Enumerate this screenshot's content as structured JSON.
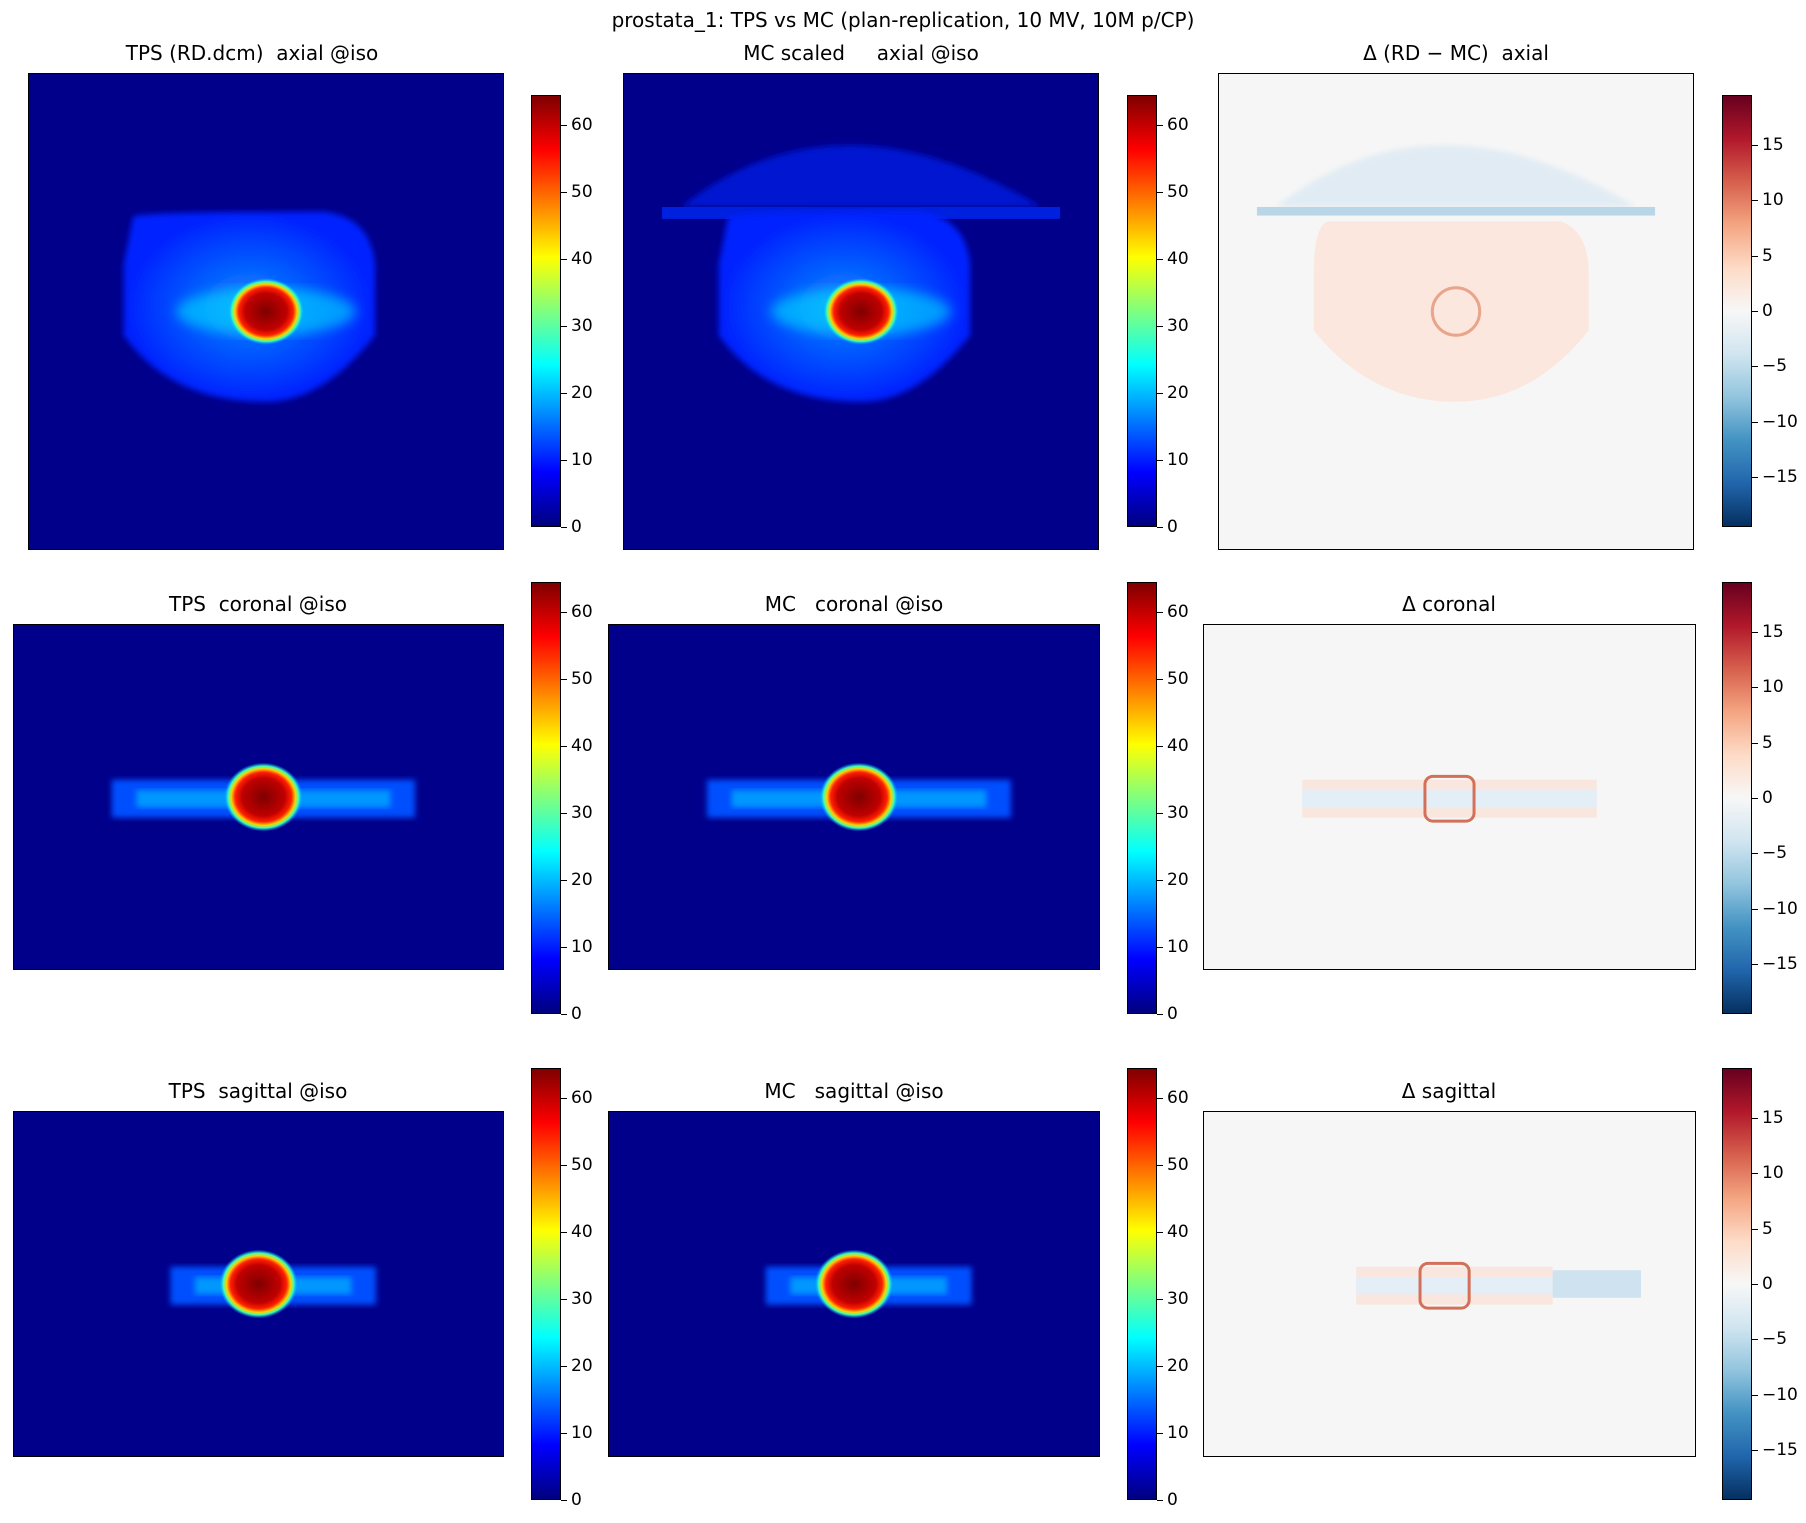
{
  "figure_title": "prostata_1: TPS vs MC (plan-replication, 10 MV, 10M p/CP)",
  "colormaps": {
    "jet": [
      "#00007f",
      "#0000ff",
      "#007fff",
      "#00ffff",
      "#7fff7f",
      "#ffff00",
      "#ff7f00",
      "#ff0000",
      "#7f0000"
    ],
    "rdbu": [
      "#053061",
      "#2166ac",
      "#4393c3",
      "#92c5de",
      "#d1e5f0",
      "#f7f7f7",
      "#fddbc7",
      "#f4a582",
      "#d6604d",
      "#b2182b",
      "#67001f"
    ]
  },
  "panels": [
    {
      "id": "tps-axial",
      "title": "TPS (RD.dcm)  axial @iso",
      "cmap": "jet",
      "vmin": 0,
      "vmax": 64.5,
      "ticks": [
        "0",
        "10",
        "20",
        "30",
        "40",
        "50",
        "60"
      ]
    },
    {
      "id": "mc-axial",
      "title": "MC scaled     axial @iso",
      "cmap": "jet",
      "vmin": 0,
      "vmax": 64.5,
      "ticks": [
        "0",
        "10",
        "20",
        "30",
        "40",
        "50",
        "60"
      ]
    },
    {
      "id": "delta-axial",
      "title": "Δ (RD − MC)  axial",
      "cmap": "rdbu",
      "vmin": -19.5,
      "vmax": 19.5,
      "ticks": [
        "−15",
        "−10",
        "−5",
        "0",
        "5",
        "10",
        "15"
      ]
    },
    {
      "id": "tps-coronal",
      "title": "TPS  coronal @iso",
      "cmap": "jet",
      "vmin": 0,
      "vmax": 64.5,
      "ticks": [
        "0",
        "10",
        "20",
        "30",
        "40",
        "50",
        "60"
      ]
    },
    {
      "id": "mc-coronal",
      "title": "MC   coronal @iso",
      "cmap": "jet",
      "vmin": 0,
      "vmax": 64.5,
      "ticks": [
        "0",
        "10",
        "20",
        "30",
        "40",
        "50",
        "60"
      ]
    },
    {
      "id": "delta-coronal",
      "title": "Δ coronal",
      "cmap": "rdbu",
      "vmin": -19.5,
      "vmax": 19.5,
      "ticks": [
        "−15",
        "−10",
        "−5",
        "0",
        "5",
        "10",
        "15"
      ]
    },
    {
      "id": "tps-sagittal",
      "title": "TPS  sagittal @iso",
      "cmap": "jet",
      "vmin": 0,
      "vmax": 64.5,
      "ticks": [
        "0",
        "10",
        "20",
        "30",
        "40",
        "50",
        "60"
      ]
    },
    {
      "id": "mc-sagittal",
      "title": "MC   sagittal @iso",
      "cmap": "jet",
      "vmin": 0,
      "vmax": 64.5,
      "ticks": [
        "0",
        "10",
        "20",
        "30",
        "40",
        "50",
        "60"
      ]
    },
    {
      "id": "delta-sagittal",
      "title": "Δ sagittal",
      "cmap": "rdbu",
      "vmin": -19.5,
      "vmax": 19.5,
      "ticks": [
        "−15",
        "−10",
        "−5",
        "0",
        "5",
        "10",
        "15"
      ]
    }
  ],
  "chart_data": {
    "type": "heatmap",
    "title": "prostata_1: TPS vs MC (plan-replication, 10 MV, 10M p/CP)",
    "grid": "3x3",
    "dose_colorbar_range": [
      0,
      64.5
    ],
    "delta_colorbar_range": [
      -19.5,
      19.5
    ]
  }
}
